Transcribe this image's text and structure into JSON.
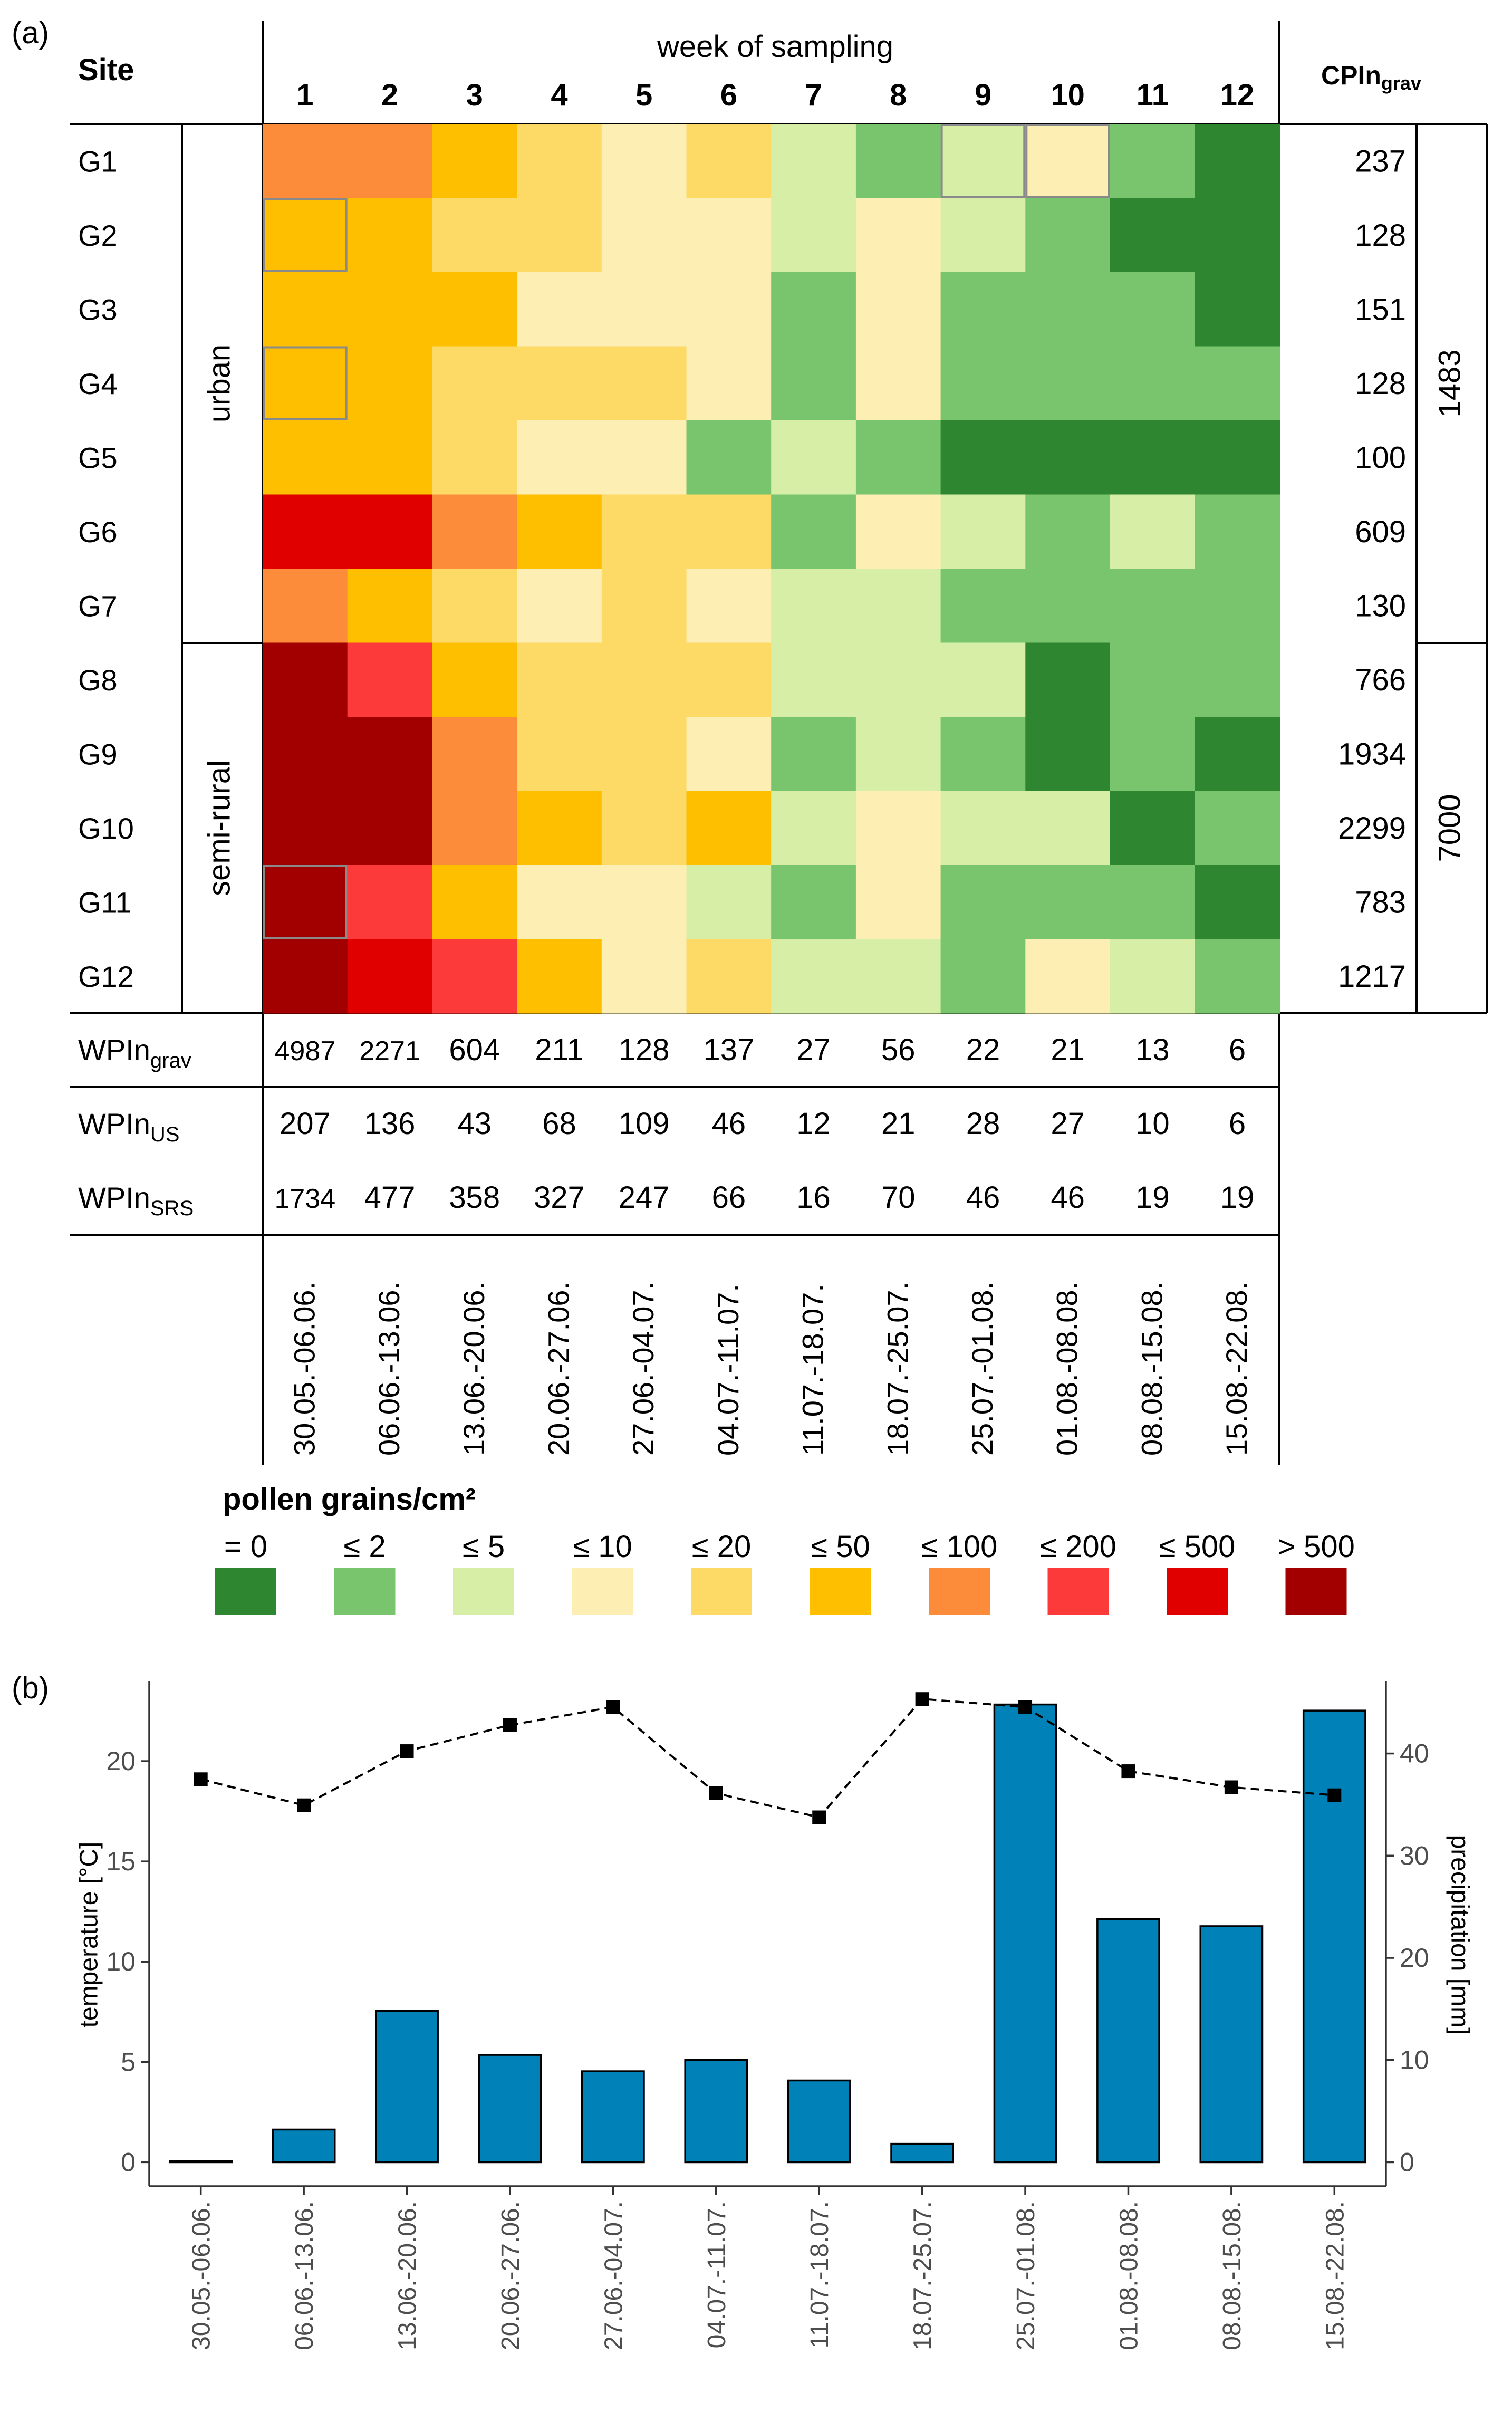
{
  "panel_a": {
    "tag": "(a)",
    "site_header": "Site",
    "week_header": "week of sampling",
    "cpin_header": {
      "main": "CPIn",
      "sub": "grav"
    },
    "weeks": [
      "1",
      "2",
      "3",
      "4",
      "5",
      "6",
      "7",
      "8",
      "9",
      "10",
      "11",
      "12"
    ],
    "sites": [
      "G1",
      "G2",
      "G3",
      "G4",
      "G5",
      "G6",
      "G7",
      "G8",
      "G9",
      "G10",
      "G11",
      "G12"
    ],
    "groups": [
      {
        "label": "urban",
        "total": "1483",
        "rows": 7
      },
      {
        "label": "semi-rural",
        "total": "7000",
        "rows": 5
      }
    ],
    "cpin_values": [
      "237",
      "128",
      "151",
      "128",
      "100",
      "609",
      "130",
      "766",
      "1934",
      "2299",
      "783",
      "1217"
    ],
    "wpin_rows": [
      {
        "main": "WPIn",
        "sub": "grav",
        "values": [
          "4987",
          "2271",
          "604",
          "211",
          "128",
          "137",
          "27",
          "56",
          "22",
          "21",
          "13",
          "6"
        ]
      },
      {
        "main": "WPIn",
        "sub": "US",
        "values": [
          "207",
          "136",
          "43",
          "68",
          "109",
          "46",
          "12",
          "21",
          "28",
          "27",
          "10",
          "6"
        ]
      },
      {
        "main": "WPIn",
        "sub": "SRS",
        "values": [
          "1734",
          "477",
          "358",
          "327",
          "247",
          "66",
          "16",
          "70",
          "46",
          "46",
          "19",
          "19"
        ]
      }
    ],
    "date_ranges": [
      "30.05.-06.06.",
      "06.06.-13.06.",
      "13.06.-20.06.",
      "20.06.-27.06.",
      "27.06.-04.07.",
      "04.07.-11.07.",
      "11.07.-18.07.",
      "18.07.-25.07.",
      "25.07.-01.08.",
      "01.08.-08.08.",
      "08.08.-15.08.",
      "15.08.-22.08."
    ],
    "legend": {
      "title": "pollen grains/cm²",
      "labels": [
        "= 0",
        "≤ 2",
        "≤ 5",
        "≤ 10",
        "≤ 20",
        "≤ 50",
        "≤ 100",
        "≤ 200",
        "≤ 500",
        "> 500"
      ],
      "colors": [
        "#2e8730",
        "#78c56e",
        "#d6eea6",
        "#fdeeb3",
        "#fdd966",
        "#fdbf00",
        "#fd8c3a",
        "#fd3a3a",
        "#e00000",
        "#a20000"
      ]
    },
    "heatmap_classes": [
      [
        6,
        6,
        5,
        4,
        3,
        4,
        2,
        1,
        2,
        3,
        1,
        0
      ],
      [
        5,
        5,
        4,
        4,
        3,
        3,
        2,
        3,
        2,
        1,
        0,
        0
      ],
      [
        5,
        5,
        5,
        3,
        3,
        3,
        1,
        3,
        1,
        1,
        1,
        0
      ],
      [
        5,
        5,
        4,
        4,
        4,
        3,
        1,
        3,
        1,
        1,
        1,
        1
      ],
      [
        5,
        5,
        4,
        3,
        3,
        1,
        2,
        1,
        0,
        0,
        0,
        0
      ],
      [
        8,
        8,
        6,
        5,
        4,
        4,
        1,
        3,
        2,
        1,
        2,
        1
      ],
      [
        6,
        5,
        4,
        3,
        4,
        3,
        2,
        2,
        1,
        1,
        1,
        1
      ],
      [
        9,
        7,
        5,
        4,
        4,
        4,
        2,
        2,
        2,
        0,
        1,
        1
      ],
      [
        9,
        9,
        6,
        4,
        4,
        3,
        1,
        2,
        1,
        0,
        1,
        0
      ],
      [
        9,
        9,
        6,
        5,
        4,
        5,
        2,
        3,
        2,
        2,
        0,
        1
      ],
      [
        9,
        7,
        5,
        3,
        3,
        2,
        1,
        3,
        1,
        1,
        1,
        0
      ],
      [
        9,
        8,
        7,
        5,
        3,
        4,
        2,
        2,
        1,
        3,
        2,
        1
      ]
    ],
    "outlined_cells": [
      [
        1,
        0
      ],
      [
        3,
        0
      ],
      [
        10,
        0
      ],
      [
        0,
        8
      ],
      [
        0,
        9
      ]
    ]
  },
  "panel_b": {
    "tag": "(b)",
    "chart_data": {
      "type": "bar",
      "categories": [
        "30.05.-06.06.",
        "06.06.-13.06.",
        "13.06.-20.06.",
        "20.06.-27.06.",
        "27.06.-04.07.",
        "04.07.-11.07.",
        "11.07.-18.07.",
        "18.07.-25.07.",
        "25.07.-01.08.",
        "01.08.-08.08.",
        "08.08.-15.08.",
        "15.08.-22.08."
      ],
      "series": [
        {
          "type": "bar",
          "axis": "right",
          "values": [
            0.1,
            3.2,
            14.8,
            10.5,
            8.9,
            10.0,
            8.0,
            1.8,
            44.8,
            23.8,
            23.1,
            44.2
          ],
          "color": "#0082b8"
        },
        {
          "type": "line",
          "axis": "left",
          "style": "dashed",
          "marker": "square",
          "values": [
            19.1,
            17.8,
            20.5,
            21.8,
            22.7,
            18.4,
            17.2,
            23.1,
            22.7,
            19.5,
            18.7,
            18.3
          ],
          "color": "#000000"
        }
      ],
      "ylabel": "temperature [°C]",
      "ylabel_right": "precipitation [mm]",
      "ylim": [
        -1.2,
        24
      ],
      "ylim_right": [
        -2.35,
        47.1
      ],
      "yticks": [
        "0",
        "5",
        "10",
        "15",
        "20"
      ],
      "yticks_right": [
        "0",
        "10",
        "20",
        "30",
        "40"
      ],
      "grid": false
    }
  }
}
